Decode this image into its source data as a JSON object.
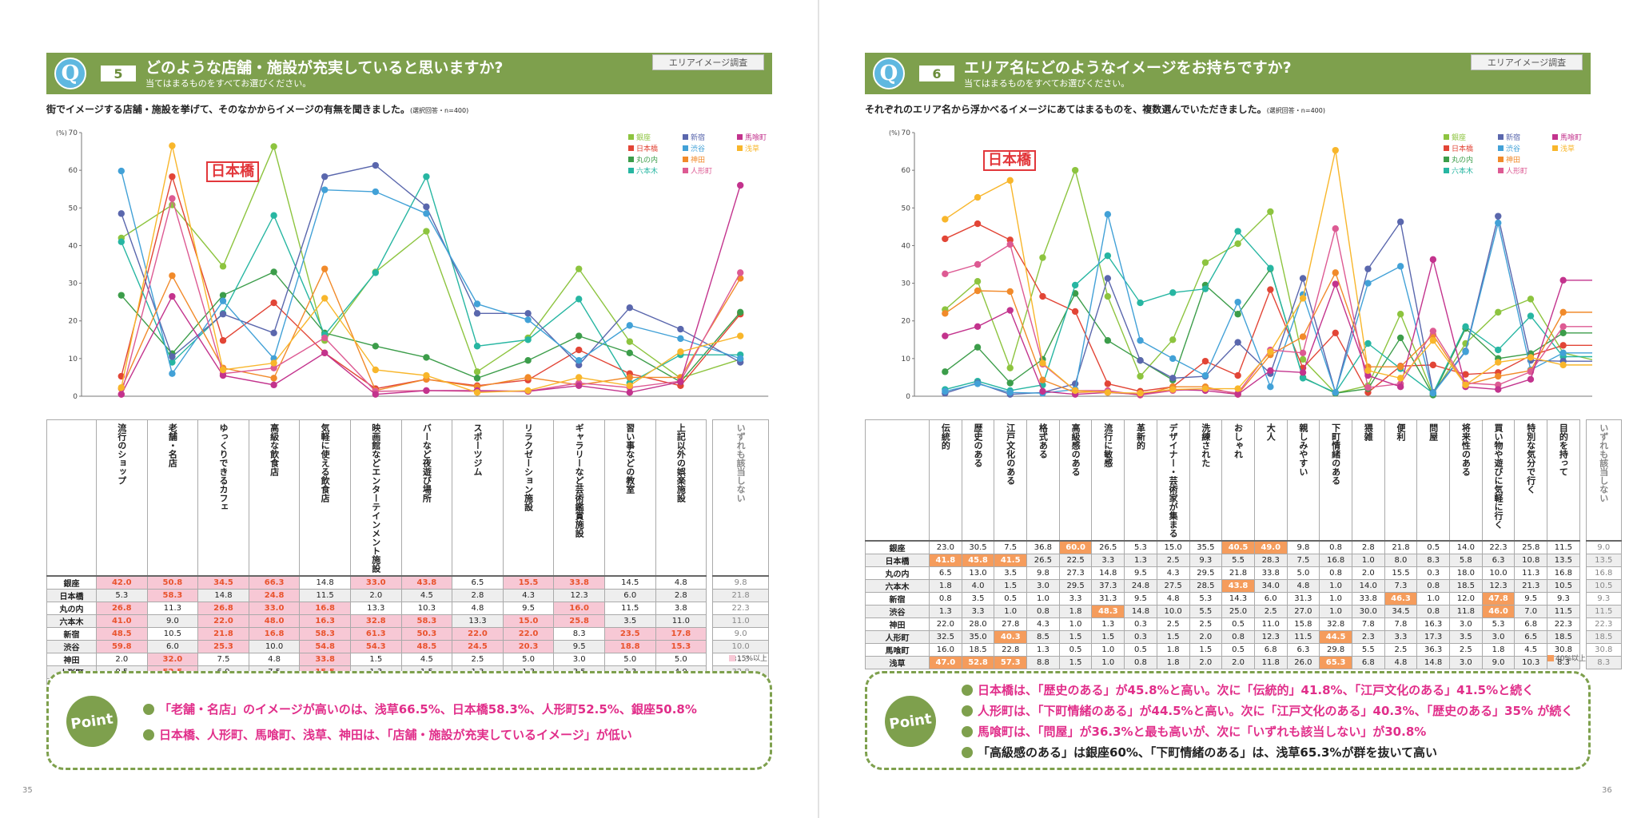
{
  "series_colors": {
    "銀座": "#8dc43f",
    "日本橋": "#e24536",
    "丸の内": "#3c9d4a",
    "六本木": "#27b6a2",
    "新宿": "#5a67ad",
    "渋谷": "#42a1d7",
    "神田": "#f18a2a",
    "人形町": "#dd5a93",
    "馬喰町": "#c3338d",
    "浅草": "#f8b62b"
  },
  "highlight_colors": {
    "pink": "#f7c8d5",
    "orange": "#f59c5c"
  },
  "left": {
    "q_icon": "Q",
    "q_number": "5",
    "q_title": "どのような店舗・施設が充実していると思いますか?",
    "q_sub": "当てはまるものをすべてお選びください。",
    "tag": "エリアイメージ調査",
    "intro": "街でイメージする店舗・施設を挙げて、そのなかからイメージの有無を聞きました。",
    "intro_note": "(選択回答・n=400)",
    "callout": "日本橋",
    "note": "15%以上",
    "page": "35",
    "point_badge": "Point",
    "points": [
      "「老舗・名店」のイメージが高いのは、浅草66.5%、日本橋58.3%、人形町52.5%、銀座50.8%",
      "日本橋、人形町、馬喰町、浅草、神田は、「店舗・施設が充実しているイメージ」が低い"
    ]
  },
  "right": {
    "q_icon": "Q",
    "q_number": "6",
    "q_title": "エリア名にどのようなイメージをお持ちですか?",
    "q_sub": "当てはまるものをすべてお選びください。",
    "tag": "エリアイメージ調査",
    "intro": "それぞれのエリア名から浮かべるイメージにあてはまるものを、複数選んでいただきました。",
    "intro_note": "(選択回答・n=400)",
    "callout": "日本橋",
    "note": "40%以上",
    "page": "36",
    "point_badge": "Point",
    "points": [
      "日本橋は、「歴史のある」が45.8%と高い。次に「伝統的」41.8%、「江戸文化のある」41.5%と続く",
      "人形町は、「下町情緒のある」が44.5%と高い。次に「江戸文化のある」40.3%、「歴史のある」35% が続く",
      "馬喰町は、「問屋」が36.3%と最も高いが、次に「いずれも該当しない」が30.8%",
      "「高級感のある」は銀座60%、「下町情緒のある」は、浅草65.3%が群を抜いて高い"
    ]
  },
  "chart_data": [
    {
      "type": "line",
      "y_unit": "(%)",
      "ylim": [
        0,
        70
      ],
      "yticks": [
        0,
        10,
        20,
        30,
        40,
        50,
        60,
        70
      ],
      "areas": [
        "銀座",
        "日本橋",
        "丸の内",
        "六本木",
        "新宿",
        "渋谷",
        "神田",
        "人形町",
        "馬喰町",
        "浅草"
      ],
      "categories": [
        "流行のショップ",
        "老舗・名店",
        "ゆっくりできるカフェ",
        "高級な飲食店",
        "気軽に使える飲食店",
        "映画館などエンターテインメント施設",
        "バーなど夜遊び場所",
        "スポーツジム",
        "リラクゼーション施設",
        "ギャラリーなど芸術鑑賞施設",
        "習い事などの教室",
        "上記以外の娯楽施設"
      ],
      "extra_column": "いずれも該当しない",
      "series": [
        {
          "name": "銀座",
          "values": [
            42.0,
            50.8,
            34.5,
            66.3,
            14.8,
            33.0,
            43.8,
            6.5,
            15.5,
            33.8,
            14.5,
            4.8
          ],
          "none": 9.8
        },
        {
          "name": "日本橋",
          "values": [
            5.3,
            58.3,
            14.8,
            24.8,
            11.5,
            2.0,
            4.5,
            2.8,
            4.3,
            12.3,
            6.0,
            2.8
          ],
          "none": 21.8
        },
        {
          "name": "丸の内",
          "values": [
            26.8,
            11.3,
            26.8,
            33.0,
            16.8,
            13.3,
            10.3,
            4.8,
            9.5,
            16.0,
            11.5,
            3.8
          ],
          "none": 22.3
        },
        {
          "name": "六本木",
          "values": [
            41.0,
            9.0,
            22.0,
            48.0,
            16.3,
            32.8,
            58.3,
            13.3,
            15.0,
            25.8,
            3.5,
            11.0
          ],
          "none": 11.0
        },
        {
          "name": "新宿",
          "values": [
            48.5,
            10.5,
            21.8,
            16.8,
            58.3,
            61.3,
            50.3,
            22.0,
            22.0,
            8.3,
            23.5,
            17.8
          ],
          "none": 9.0
        },
        {
          "name": "渋谷",
          "values": [
            59.8,
            6.0,
            25.3,
            10.0,
            54.8,
            54.3,
            48.5,
            24.5,
            20.3,
            9.5,
            18.8,
            15.3
          ],
          "none": 10.0
        },
        {
          "name": "神田",
          "values": [
            2.0,
            32.0,
            7.5,
            4.8,
            33.8,
            1.5,
            4.5,
            2.5,
            5.0,
            3.0,
            5.0,
            5.0
          ],
          "none": 31.3
        },
        {
          "name": "人形町",
          "values": [
            0.5,
            52.5,
            6.0,
            7.5,
            15.5,
            1.3,
            1.5,
            1.3,
            1.3,
            3.5,
            2.3,
            4.0
          ],
          "none": 32.8
        },
        {
          "name": "馬喰町",
          "values": [
            0.5,
            26.5,
            5.5,
            3.0,
            11.5,
            0.5,
            1.5,
            1.5,
            1.3,
            2.8,
            1.0,
            3.8
          ],
          "none": 56.0
        },
        {
          "name": "浅草",
          "values": [
            2.3,
            66.5,
            7.0,
            8.8,
            26.0,
            7.0,
            5.5,
            1.0,
            1.5,
            5.0,
            2.8,
            11.8
          ],
          "none": 16.0
        }
      ]
    },
    {
      "type": "line",
      "y_unit": "(%)",
      "ylim": [
        0,
        70
      ],
      "yticks": [
        0,
        10,
        20,
        30,
        40,
        50,
        60,
        70
      ],
      "areas": [
        "銀座",
        "日本橋",
        "丸の内",
        "六本木",
        "新宿",
        "渋谷",
        "神田",
        "人形町",
        "馬喰町",
        "浅草"
      ],
      "categories": [
        "伝統的",
        "歴史のある",
        "江戸文化のある",
        "格式ある",
        "高級感のある",
        "流行に敏感",
        "革新的",
        "デザイナー・芸術家が集まる",
        "洗練された",
        "おしゃれ",
        "大人",
        "親しみやすい",
        "下町情緒のある",
        "猥雑",
        "便利",
        "問屋",
        "将来性のある",
        "買い物や遊びに気軽に行く",
        "特別な気分で行く",
        "目的を持って"
      ],
      "extra_column": "いずれも該当しない",
      "series": [
        {
          "name": "銀座",
          "values": [
            23.0,
            30.5,
            7.5,
            36.8,
            60.0,
            26.5,
            5.3,
            15.0,
            35.5,
            40.5,
            49.0,
            9.8,
            0.8,
            2.8,
            21.8,
            0.5,
            14.0,
            22.3,
            25.8,
            11.5
          ],
          "none": 9.0
        },
        {
          "name": "日本橋",
          "values": [
            41.8,
            45.8,
            41.5,
            26.5,
            22.5,
            3.3,
            1.3,
            2.5,
            9.3,
            5.5,
            28.3,
            7.5,
            16.8,
            1.0,
            8.0,
            8.3,
            5.8,
            6.3,
            10.8,
            13.5
          ],
          "none": 13.5
        },
        {
          "name": "丸の内",
          "values": [
            6.5,
            13.0,
            3.5,
            9.8,
            27.3,
            14.8,
            9.5,
            4.3,
            29.5,
            21.8,
            33.8,
            5.0,
            0.8,
            2.0,
            15.5,
            0.3,
            18.0,
            10.0,
            11.3,
            16.8
          ],
          "none": 16.8
        },
        {
          "name": "六本木",
          "values": [
            1.8,
            4.0,
            1.5,
            3.0,
            29.5,
            37.3,
            24.8,
            27.5,
            28.5,
            43.8,
            34.0,
            4.8,
            1.0,
            14.0,
            7.3,
            0.8,
            18.5,
            12.3,
            21.3,
            10.5
          ],
          "none": 10.5
        },
        {
          "name": "新宿",
          "values": [
            0.8,
            3.5,
            0.5,
            1.0,
            3.3,
            31.3,
            9.5,
            4.8,
            5.3,
            14.3,
            6.0,
            31.3,
            1.0,
            33.8,
            46.3,
            1.0,
            12.0,
            47.8,
            9.5,
            9.3
          ],
          "none": 9.3
        },
        {
          "name": "渋谷",
          "values": [
            1.3,
            3.3,
            1.0,
            0.8,
            1.8,
            48.3,
            14.8,
            10.0,
            5.5,
            25.0,
            2.5,
            27.0,
            1.0,
            30.0,
            34.5,
            0.8,
            11.8,
            46.0,
            7.0,
            11.5
          ],
          "none": 11.5
        },
        {
          "name": "神田",
          "values": [
            22.0,
            28.0,
            27.8,
            4.3,
            1.0,
            1.3,
            0.3,
            2.5,
            2.5,
            0.5,
            11.0,
            15.8,
            32.8,
            7.8,
            7.8,
            16.3,
            3.0,
            5.3,
            6.8,
            22.3
          ],
          "none": 22.3
        },
        {
          "name": "人形町",
          "values": [
            32.5,
            35.0,
            40.3,
            8.5,
            1.5,
            1.5,
            0.3,
            1.5,
            2.0,
            0.8,
            12.3,
            11.5,
            44.5,
            2.3,
            3.3,
            17.3,
            3.5,
            3.0,
            6.5,
            18.5
          ],
          "none": 18.5
        },
        {
          "name": "馬喰町",
          "values": [
            16.0,
            18.5,
            22.8,
            1.3,
            0.5,
            1.0,
            0.5,
            1.8,
            1.5,
            0.5,
            6.8,
            6.3,
            29.8,
            5.5,
            2.5,
            36.3,
            2.5,
            1.8,
            4.5,
            30.8
          ],
          "none": 30.8
        },
        {
          "name": "浅草",
          "values": [
            47.0,
            52.8,
            57.3,
            8.8,
            1.5,
            1.0,
            0.8,
            1.8,
            2.0,
            2.0,
            11.8,
            26.0,
            65.3,
            6.8,
            4.8,
            14.8,
            3.0,
            9.0,
            10.3,
            8.3
          ],
          "none": 8.3
        }
      ]
    }
  ]
}
